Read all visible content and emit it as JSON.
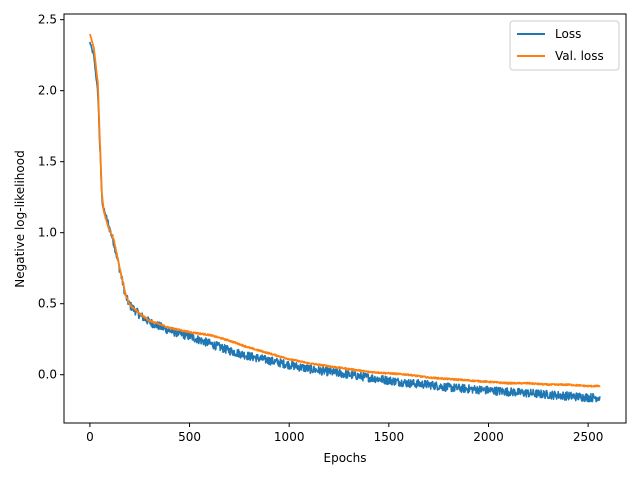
{
  "chart_data": {
    "type": "line",
    "title": "",
    "xlabel": "Epochs",
    "ylabel": "Negative log-likelihood",
    "xlim": [
      -130,
      2690
    ],
    "ylim": [
      -0.34,
      2.54
    ],
    "xticks": [
      0,
      500,
      1000,
      1500,
      2000,
      2500
    ],
    "yticks": [
      0.0,
      0.5,
      1.0,
      1.5,
      2.0,
      2.5
    ],
    "xtick_labels": [
      "0",
      "500",
      "1000",
      "1500",
      "2000",
      "2500"
    ],
    "ytick_labels": [
      "0.0",
      "0.5",
      "1.0",
      "1.5",
      "2.0",
      "2.5"
    ],
    "grid": false,
    "legend": "top-right",
    "series": [
      {
        "name": "Loss",
        "color": "#1f77b4",
        "noise_amplitude": 0.03,
        "x": [
          0,
          20,
          40,
          50,
          60,
          70,
          90,
          120,
          150,
          180,
          200,
          250,
          300,
          400,
          500,
          600,
          700,
          800,
          900,
          1000,
          1100,
          1200,
          1300,
          1400,
          1500,
          1600,
          1700,
          1800,
          1900,
          2000,
          2100,
          2200,
          2300,
          2400,
          2500,
          2560
        ],
        "y": [
          2.34,
          2.24,
          1.98,
          1.6,
          1.25,
          1.15,
          1.07,
          0.93,
          0.74,
          0.55,
          0.49,
          0.42,
          0.37,
          0.31,
          0.27,
          0.22,
          0.17,
          0.13,
          0.1,
          0.07,
          0.04,
          0.02,
          0.0,
          -0.02,
          -0.04,
          -0.06,
          -0.07,
          -0.09,
          -0.1,
          -0.11,
          -0.12,
          -0.13,
          -0.14,
          -0.15,
          -0.16,
          -0.16
        ]
      },
      {
        "name": "Val. loss",
        "color": "#ff7f0e",
        "noise_amplitude": 0.005,
        "x": [
          0,
          20,
          40,
          50,
          60,
          70,
          90,
          120,
          150,
          180,
          200,
          250,
          300,
          400,
          500,
          600,
          700,
          800,
          900,
          1000,
          1100,
          1200,
          1300,
          1400,
          1500,
          1600,
          1700,
          1800,
          1900,
          2000,
          2100,
          2200,
          2300,
          2400,
          2500,
          2560
        ],
        "y": [
          2.4,
          2.3,
          2.05,
          1.65,
          1.28,
          1.15,
          1.05,
          0.95,
          0.75,
          0.56,
          0.49,
          0.43,
          0.38,
          0.33,
          0.3,
          0.28,
          0.24,
          0.19,
          0.15,
          0.11,
          0.08,
          0.06,
          0.04,
          0.02,
          0.01,
          0.0,
          -0.02,
          -0.03,
          -0.04,
          -0.05,
          -0.06,
          -0.06,
          -0.07,
          -0.07,
          -0.08,
          -0.08
        ]
      }
    ]
  }
}
